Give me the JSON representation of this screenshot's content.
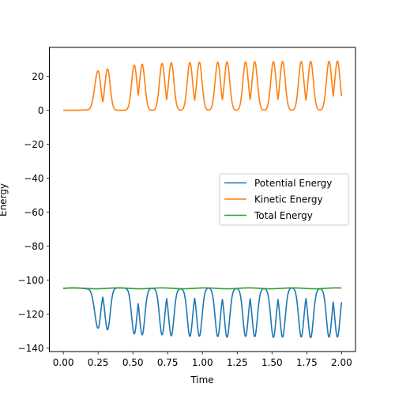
{
  "chart_data": {
    "type": "line",
    "title": "",
    "xlabel": "Time",
    "ylabel": "Energy",
    "xlim": [
      -0.1,
      2.1
    ],
    "ylim": [
      -142,
      37
    ],
    "xticks": [
      0.0,
      0.25,
      0.5,
      0.75,
      1.0,
      1.25,
      1.5,
      1.75,
      2.0
    ],
    "xtick_labels": [
      "0.00",
      "0.25",
      "0.50",
      "0.75",
      "1.00",
      "1.25",
      "1.50",
      "1.75",
      "2.00"
    ],
    "yticks": [
      20,
      0,
      -20,
      -40,
      -60,
      -80,
      -100,
      -120,
      -140
    ],
    "ytick_labels": [
      "20",
      "0",
      "−20",
      "−40",
      "−60",
      "−80",
      "−100",
      "−120",
      "−140"
    ],
    "grid": false,
    "legend_position": "center-right",
    "total_energy": -104.8,
    "kinetic_peaks": [
      [
        0.25,
        23.2
      ],
      [
        0.318,
        24.4
      ],
      [
        0.51,
        26.6
      ],
      [
        0.567,
        27.1
      ],
      [
        0.71,
        27.6
      ],
      [
        0.776,
        28.0
      ],
      [
        0.91,
        28.1
      ],
      [
        0.978,
        28.3
      ],
      [
        1.11,
        28.3
      ],
      [
        1.177,
        28.5
      ],
      [
        1.31,
        28.5
      ],
      [
        1.376,
        28.6
      ],
      [
        1.51,
        28.6
      ],
      [
        1.576,
        28.7
      ],
      [
        1.71,
        28.7
      ],
      [
        1.778,
        28.8
      ],
      [
        1.91,
        28.8
      ],
      [
        1.97,
        28.9
      ]
    ],
    "kinetic_end": [
      2.0,
      1.5
    ],
    "series": [
      {
        "name": "Potential Energy",
        "color": "#1f77b4"
      },
      {
        "name": "Kinetic Energy",
        "color": "#ff7f0e"
      },
      {
        "name": "Total Energy",
        "color": "#2ca02c"
      }
    ]
  }
}
